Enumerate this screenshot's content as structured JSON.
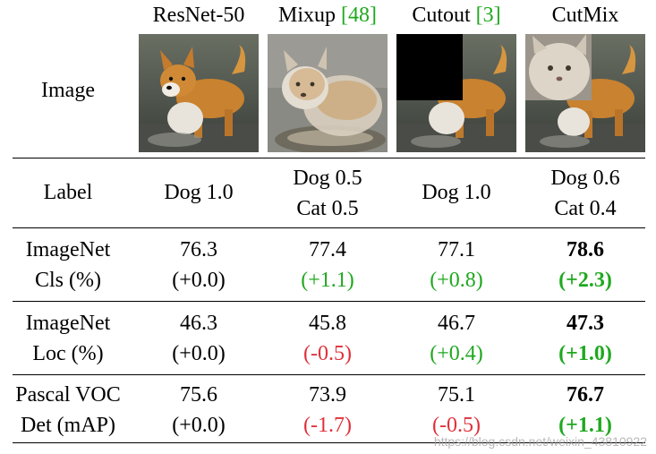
{
  "columns": [
    {
      "name": "ResNet-50",
      "ref": ""
    },
    {
      "name": "Mixup ",
      "ref": "[48]"
    },
    {
      "name": "Cutout ",
      "ref": "[3]"
    },
    {
      "name": "CutMix",
      "ref": ""
    }
  ],
  "rows": {
    "image_label": "Image",
    "label": {
      "title": "Label",
      "cells": [
        [
          "Dog 1.0"
        ],
        [
          "Dog 0.5",
          "Cat 0.5"
        ],
        [
          "Dog 1.0"
        ],
        [
          "Dog 0.6",
          "Cat 0.4"
        ]
      ]
    },
    "cls": {
      "title": [
        "ImageNet",
        "Cls (%)"
      ],
      "values": [
        "76.3",
        "77.4",
        "77.1",
        "78.6"
      ],
      "deltas": [
        "(+0.0)",
        "(+1.1)",
        "(+0.8)",
        "(+2.3)"
      ]
    },
    "loc": {
      "title": [
        "ImageNet",
        "Loc (%)"
      ],
      "values": [
        "46.3",
        "45.8",
        "46.7",
        "47.3"
      ],
      "deltas": [
        "(+0.0)",
        "(-0.5)",
        "(+0.4)",
        "(+1.0)"
      ]
    },
    "det": {
      "title": [
        "Pascal VOC",
        "Det (mAP)"
      ],
      "values": [
        "75.6",
        "73.9",
        "75.1",
        "76.7"
      ],
      "deltas": [
        "(+0.0)",
        "(-1.7)",
        "(-0.5)",
        "(+1.1)"
      ]
    }
  },
  "colors": {
    "positive": "#1fa81f",
    "negative": "#e0303a",
    "neutral": "#000000"
  },
  "watermark": "https://blog.csdn.net/weixin_43810922"
}
